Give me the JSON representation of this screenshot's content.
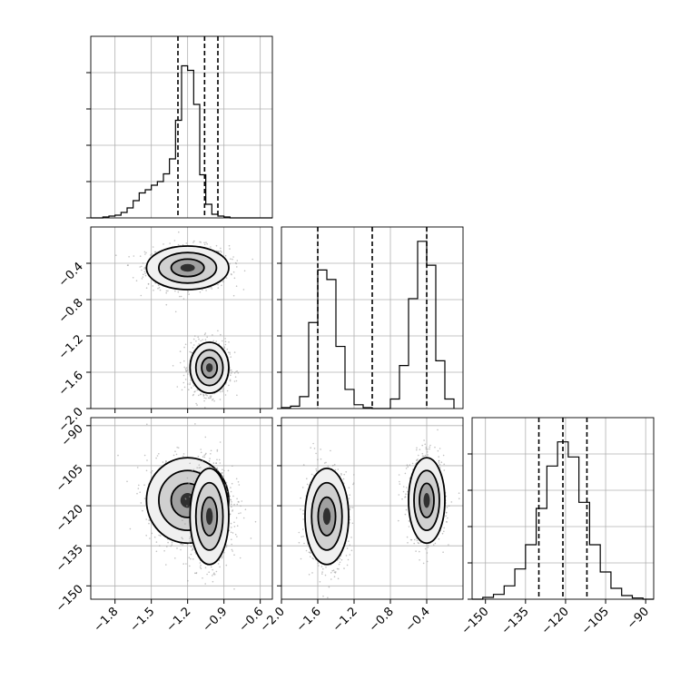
{
  "chart_data": [
    {
      "type": "histogram",
      "panel": "p0",
      "x_range": [
        -2.0,
        -0.5
      ],
      "xticks": [
        "−1.8",
        "−1.5",
        "−1.2",
        "−0.9",
        "−0.6"
      ],
      "xtick_values": [
        -1.8,
        -1.5,
        -1.2,
        -0.9,
        -0.6
      ],
      "bins": [
        -2.0,
        -1.9,
        -1.85,
        -1.8,
        -1.75,
        -1.7,
        -1.65,
        -1.6,
        -1.55,
        -1.5,
        -1.45,
        -1.4,
        -1.35,
        -1.3,
        -1.25,
        -1.2,
        -1.15,
        -1.1,
        -1.05,
        -1.0,
        -0.95,
        -0.9,
        -0.85,
        -0.8,
        -0.75,
        -0.7,
        -0.65,
        -0.6,
        -0.55,
        -0.5
      ],
      "values": [
        0,
        2,
        4,
        6,
        12,
        22,
        38,
        55,
        62,
        72,
        80,
        97,
        130,
        215,
        335,
        325,
        250,
        95,
        30,
        8,
        4,
        2,
        0,
        0,
        0,
        0,
        0,
        0,
        0
      ],
      "ylim": [
        0,
        400
      ],
      "quantile_lines": [
        -1.28,
        -1.06,
        -0.95
      ],
      "grid": true
    },
    {
      "type": "scatter-density",
      "panel": "p10",
      "x_range": [
        -2.0,
        -0.5
      ],
      "y_range": [
        -2.0,
        -0.0
      ],
      "yticks": [
        "−0.4",
        "−0.8",
        "−1.2",
        "−1.6",
        "−2.0"
      ],
      "ytick_values": [
        -0.4,
        -0.8,
        -1.2,
        -1.6,
        -2.0
      ],
      "clusters": [
        {
          "x_mean": -1.2,
          "y_mean": -0.45,
          "x_sd": 0.17,
          "y_sd": 0.12
        },
        {
          "x_mean": -1.02,
          "y_mean": -1.55,
          "x_sd": 0.08,
          "y_sd": 0.14
        }
      ],
      "grid": true
    },
    {
      "type": "histogram",
      "panel": "p11",
      "x_range": [
        -2.0,
        -0.0
      ],
      "bins": [
        -2.0,
        -1.9,
        -1.8,
        -1.7,
        -1.6,
        -1.5,
        -1.4,
        -1.3,
        -1.2,
        -1.1,
        -1.0,
        -0.9,
        -0.8,
        -0.7,
        -0.6,
        -0.5,
        -0.4,
        -0.3,
        -0.2,
        -0.1
      ],
      "values": [
        2,
        5,
        25,
        180,
        290,
        270,
        130,
        40,
        8,
        2,
        0,
        0,
        20,
        90,
        230,
        350,
        300,
        100,
        20
      ],
      "ylim": [
        0,
        380
      ],
      "quantile_lines": [
        -1.6,
        -1.0,
        -0.4
      ],
      "grid": true
    },
    {
      "type": "scatter-density",
      "panel": "p20",
      "x_range": [
        -2.0,
        -0.5
      ],
      "y_range": [
        -155,
        -87
      ],
      "yticks": [
        "−90",
        "−105",
        "−120",
        "−135",
        "−150"
      ],
      "ytick_values": [
        -90,
        -105,
        -120,
        -135,
        -150
      ],
      "clusters": [
        {
          "x_mean": -1.2,
          "y_mean": -118,
          "x_sd": 0.17,
          "y_sd": 8
        },
        {
          "x_mean": -1.02,
          "y_mean": -124,
          "x_sd": 0.08,
          "y_sd": 9
        }
      ],
      "grid": true
    },
    {
      "type": "scatter-density",
      "panel": "p21",
      "x_range": [
        -2.0,
        -0.0
      ],
      "y_range": [
        -155,
        -87
      ],
      "xticks": [
        "−2.0",
        "−1.6",
        "−1.2",
        "−0.8",
        "−0.4"
      ],
      "xtick_values": [
        -2.0,
        -1.6,
        -1.2,
        -0.8,
        -0.4
      ],
      "clusters": [
        {
          "x_mean": -1.5,
          "y_mean": -124,
          "x_sd": 0.12,
          "y_sd": 9
        },
        {
          "x_mean": -0.4,
          "y_mean": -118,
          "x_sd": 0.1,
          "y_sd": 8
        }
      ],
      "grid": true
    },
    {
      "type": "histogram",
      "panel": "p22",
      "x_range": [
        -155,
        -87
      ],
      "xticks": [
        "−150",
        "−135",
        "−120",
        "−105",
        "−90"
      ],
      "xtick_values": [
        -150,
        -135,
        -120,
        -105,
        -90
      ],
      "bins": [
        -155,
        -151,
        -147,
        -143,
        -139,
        -135,
        -131,
        -127,
        -123,
        -119,
        -115,
        -111,
        -107,
        -103,
        -99,
        -95,
        -91,
        -87
      ],
      "values": [
        0,
        3,
        8,
        22,
        50,
        90,
        150,
        220,
        260,
        235,
        160,
        90,
        45,
        18,
        6,
        2,
        0
      ],
      "ylim": [
        0,
        300
      ],
      "quantile_lines": [
        -130,
        -121,
        -112
      ],
      "grid": true
    }
  ]
}
